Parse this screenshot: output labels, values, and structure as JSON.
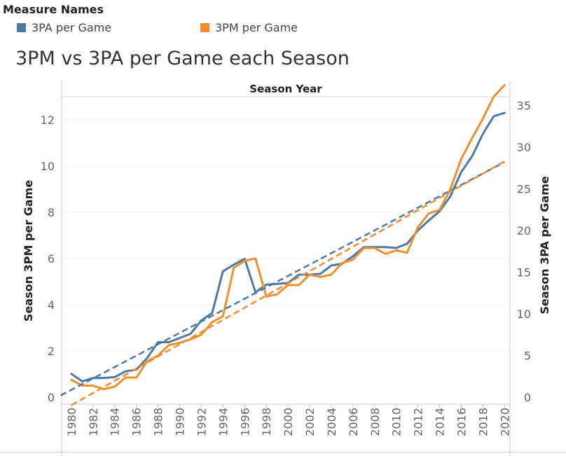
{
  "legend": {
    "title": "Measure Names",
    "items": [
      {
        "label": "3PA per Game",
        "color": "#4e79a7"
      },
      {
        "label": "3PM per Game",
        "color": "#f28e2b"
      }
    ]
  },
  "chart_data": {
    "type": "line",
    "title": "3PM vs 3PA per Game each Season",
    "x_header": "Season Year",
    "ylabel_left": "Season 3PM per Game",
    "ylabel_right": "Season 3PA per Game",
    "x": [
      1980,
      1981,
      1982,
      1983,
      1984,
      1985,
      1986,
      1987,
      1988,
      1989,
      1990,
      1991,
      1992,
      1993,
      1994,
      1995,
      1996,
      1997,
      1998,
      1999,
      2000,
      2001,
      2002,
      2003,
      2004,
      2005,
      2006,
      2007,
      2008,
      2009,
      2010,
      2011,
      2012,
      2013,
      2014,
      2015,
      2016,
      2017,
      2018,
      2019,
      2020
    ],
    "x_tick_labels": [
      "1980",
      "1982",
      "1984",
      "1986",
      "1988",
      "1990",
      "1992",
      "1994",
      "1996",
      "1998",
      "2000",
      "2002",
      "2004",
      "2006",
      "2008",
      "2010",
      "2012",
      "2014",
      "2016",
      "2018",
      "2020"
    ],
    "y_left_ticks": [
      "0",
      "2",
      "4",
      "6",
      "8",
      "10",
      "12"
    ],
    "y_right_ticks": [
      "0",
      "5",
      "10",
      "15",
      "20",
      "25",
      "30",
      "35"
    ],
    "y_left_range": [
      0,
      13
    ],
    "y_right_range": [
      0,
      35
    ],
    "series": [
      {
        "name": "3PA per Game",
        "axis": "right",
        "color": "#4e79a7",
        "values": [
          2.8,
          1.9,
          2.3,
          2.3,
          2.4,
          3.1,
          3.3,
          4.7,
          6.6,
          6.6,
          7.1,
          7.6,
          9.2,
          10.1,
          15.1,
          15.9,
          16.6,
          12.6,
          13.5,
          13.6,
          13.7,
          14.7,
          14.7,
          14.8,
          15.8,
          16.0,
          16.9,
          18.0,
          18.0,
          18.0,
          17.9,
          18.4,
          20.0,
          21.2,
          22.3,
          24.1,
          27.0,
          28.9,
          31.6,
          33.7,
          34.1
        ]
      },
      {
        "name": "3PM per Game",
        "axis": "left",
        "color": "#f28e2b",
        "values": [
          0.75,
          0.5,
          0.5,
          0.35,
          0.45,
          0.85,
          0.85,
          1.55,
          1.8,
          2.25,
          2.35,
          2.5,
          2.7,
          3.25,
          3.5,
          5.6,
          5.9,
          6.0,
          4.35,
          4.45,
          4.85,
          4.85,
          5.3,
          5.2,
          5.3,
          5.8,
          5.95,
          6.45,
          6.45,
          6.2,
          6.35,
          6.25,
          7.35,
          7.95,
          8.1,
          9.0,
          10.3,
          11.2,
          12.05,
          13.0,
          13.5
        ]
      },
      {
        "name": "3PA per Game trend",
        "axis": "right",
        "color": "#4e79a7",
        "dashed": true,
        "x": [
          1979,
          2020
        ],
        "values": [
          0.2,
          28.2
        ]
      },
      {
        "name": "3PM per Game trend",
        "axis": "left",
        "color": "#f28e2b",
        "dashed": true,
        "x": [
          1980,
          2020
        ],
        "values": [
          -0.35,
          10.2
        ]
      }
    ]
  }
}
